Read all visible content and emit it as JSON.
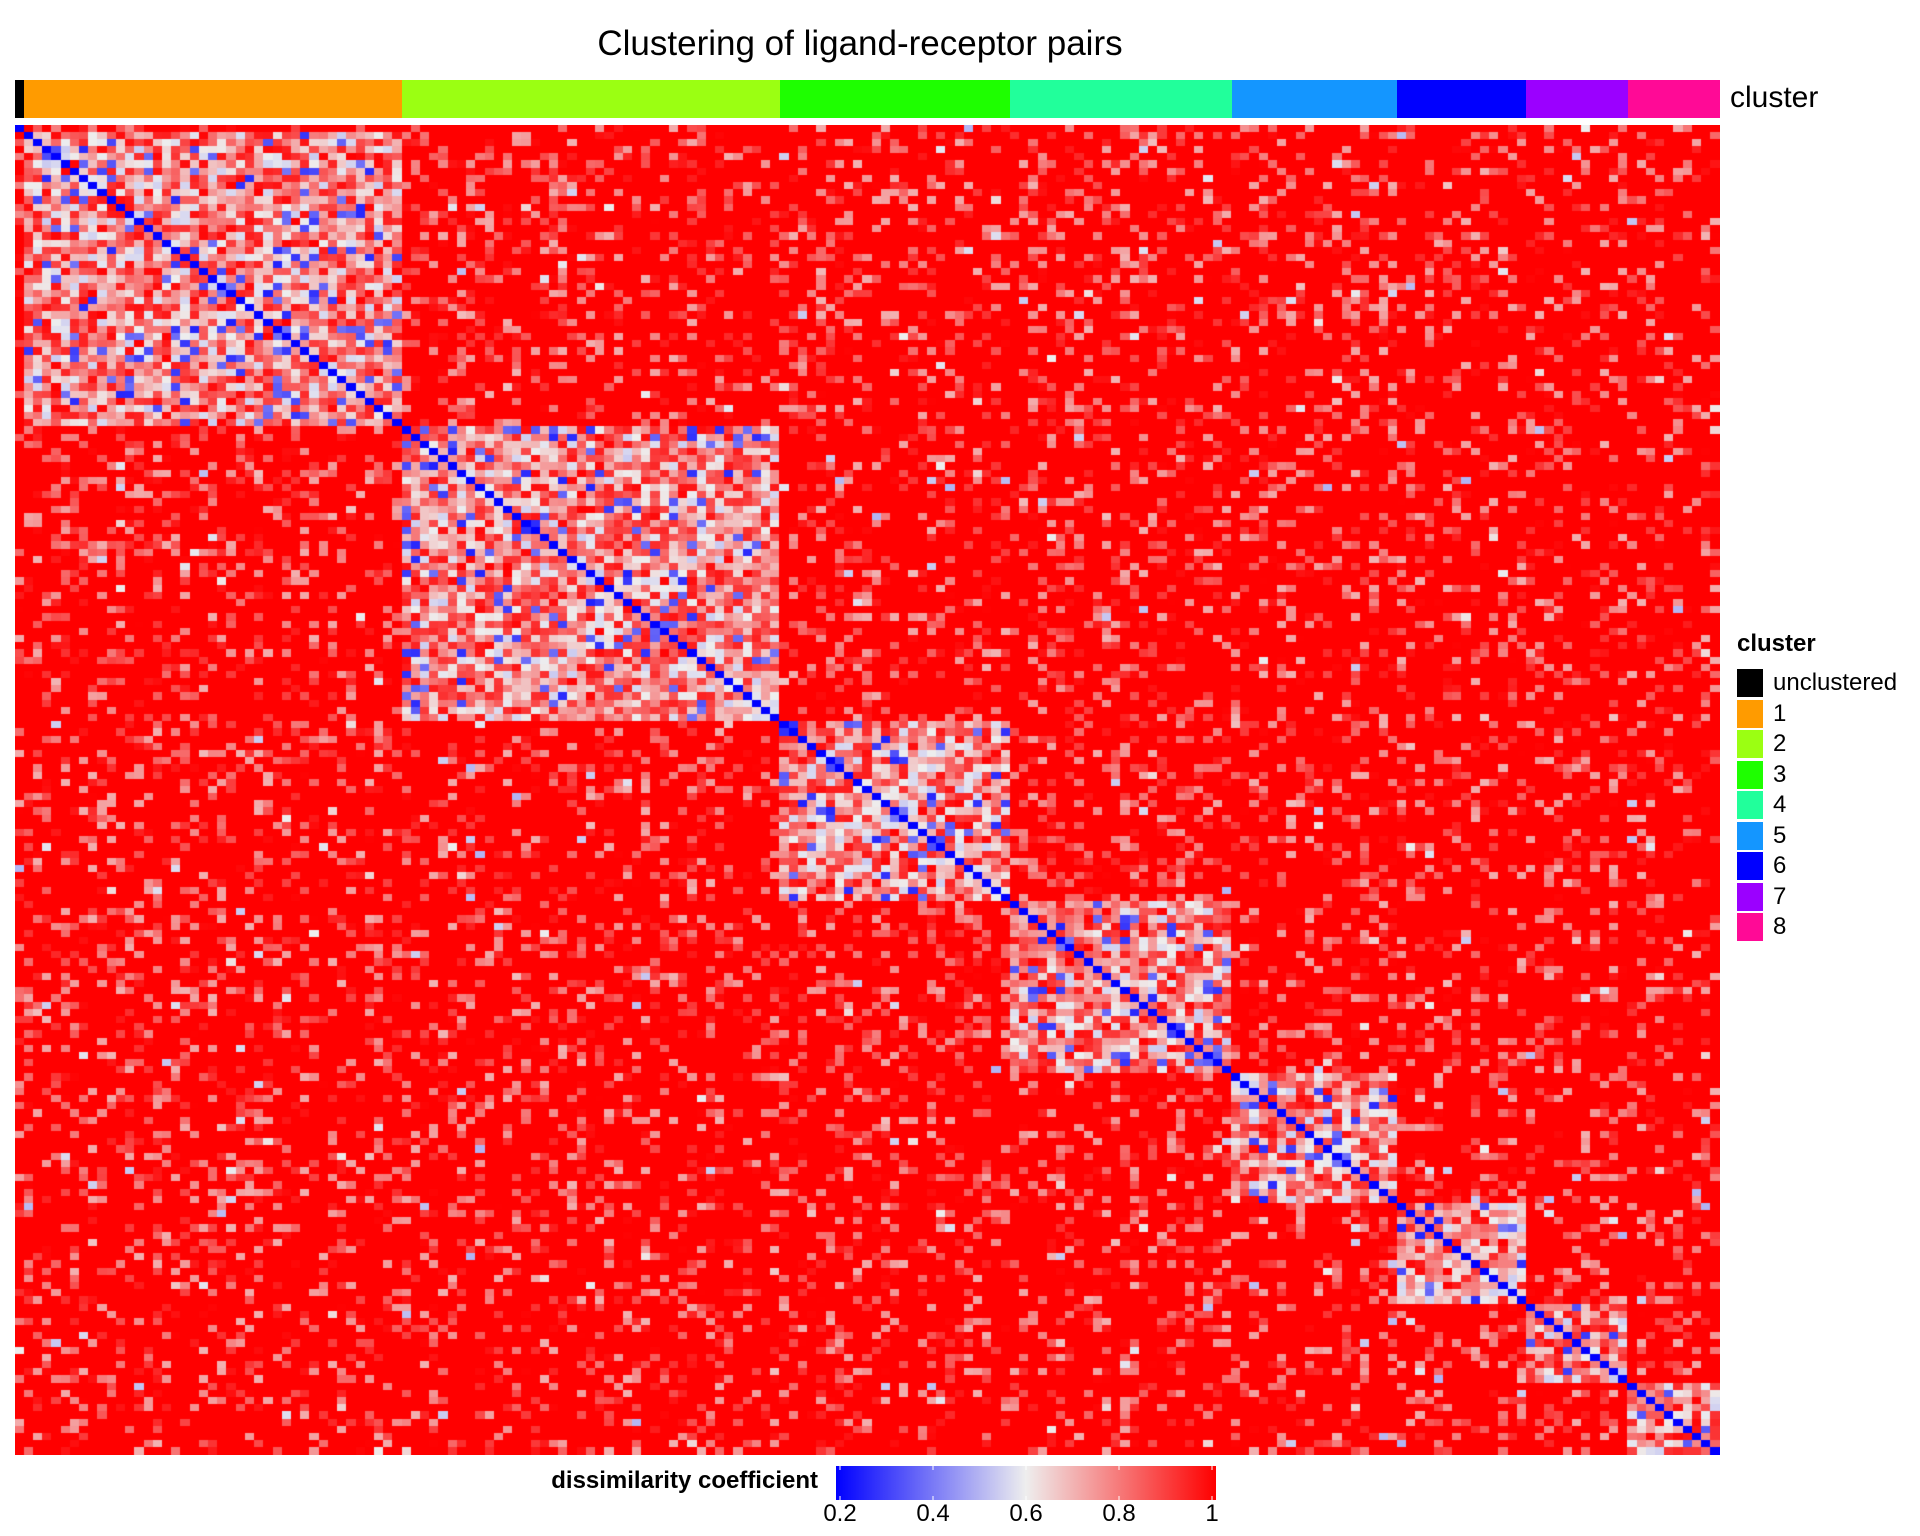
{
  "chart_data": {
    "type": "heatmap",
    "title": "Clustering of ligand-receptor pairs",
    "annotation_label": "cluster",
    "legend": {
      "title": "cluster",
      "placement": "right",
      "items": [
        {
          "label": "unclustered",
          "color": "#000000"
        },
        {
          "label": "1",
          "color": "#FF9B00"
        },
        {
          "label": "2",
          "color": "#9BFF12"
        },
        {
          "label": "3",
          "color": "#1EFF00"
        },
        {
          "label": "4",
          "color": "#21FF9B"
        },
        {
          "label": "5",
          "color": "#1496FF"
        },
        {
          "label": "6",
          "color": "#0000FF"
        },
        {
          "label": "7",
          "color": "#9B00FF"
        },
        {
          "label": "8",
          "color": "#FF0A96"
        }
      ]
    },
    "n_rows": 185,
    "n_cols": 185,
    "cluster_sizes": [
      {
        "cluster": "unclustered",
        "n": 1
      },
      {
        "cluster": "1",
        "n": 41
      },
      {
        "cluster": "2",
        "n": 41
      },
      {
        "cluster": "3",
        "n": 25
      },
      {
        "cluster": "4",
        "n": 24
      },
      {
        "cluster": "5",
        "n": 18
      },
      {
        "cluster": "6",
        "n": 14
      },
      {
        "cluster": "7",
        "n": 11
      },
      {
        "cluster": "8",
        "n": 10
      }
    ],
    "diagonal_value": 0.2,
    "within_cluster_typical_value": 0.75,
    "between_cluster_typical_value": 1.0,
    "colorbar": {
      "title": "dissimilarity coefficient",
      "range": [
        0.2,
        1
      ],
      "ticks": [
        "0.2",
        "0.4",
        "0.6",
        "0.8",
        "1"
      ],
      "colors": [
        "#0000FF",
        "#EEEEEE",
        "#FF0000"
      ],
      "midpoint": 0.6
    }
  }
}
